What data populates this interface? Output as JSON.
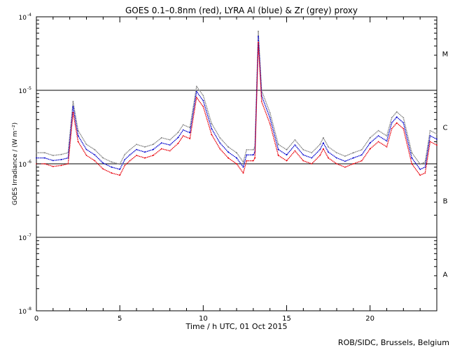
{
  "chart_data": {
    "type": "line",
    "title": "GOES 0.1–0.8nm (red), LYRA Al (blue) & Zr (grey) proxy",
    "xlabel": "Time / h UTC, 01 Oct 2015",
    "ylabel": "GOES Irradiance / (W m⁻²)",
    "xlim": [
      0,
      24
    ],
    "ylim_log10": [
      -8,
      -4
    ],
    "log_y": true,
    "x_ticks": [
      0,
      5,
      10,
      15,
      20
    ],
    "y_ticks": [
      {
        "exp": -8,
        "label": "10",
        "sup": "-8"
      },
      {
        "exp": -7,
        "label": "10",
        "sup": "-7"
      },
      {
        "exp": -6,
        "label": "10",
        "sup": "-6"
      },
      {
        "exp": -5,
        "label": "10",
        "sup": "-5"
      },
      {
        "exp": -4,
        "label": "10",
        "sup": "-4"
      }
    ],
    "reference_lines_log10": [
      -7,
      -6,
      -5
    ],
    "flare_classes": [
      {
        "label": "M",
        "log10": -4.5
      },
      {
        "label": "C",
        "log10": -5.5
      },
      {
        "label": "B",
        "log10": -6.5
      },
      {
        "label": "A",
        "log10": -7.5
      }
    ],
    "colors": {
      "goes": "#e8000b",
      "al": "#0000cc",
      "zr": "#808080"
    },
    "series": [
      {
        "name": "GOES 0.1–0.8nm",
        "color": "red",
        "log10_offset": 0.0,
        "x": [
          0,
          0.5,
          1,
          1.5,
          1.9,
          2.2,
          2.5,
          3,
          3.5,
          4,
          4.5,
          5,
          5.3,
          5.6,
          6,
          6.5,
          7,
          7.5,
          8,
          8.5,
          8.8,
          9.2,
          9.6,
          10,
          10.5,
          11,
          11.5,
          12,
          12.4,
          12.6,
          13,
          13.1,
          13.3,
          13.5,
          14,
          14.5,
          15,
          15.5,
          16,
          16.5,
          17,
          17.2,
          17.5,
          18,
          18.5,
          19,
          19.5,
          20,
          20.5,
          21,
          21.3,
          21.6,
          22,
          22.5,
          23,
          23.3,
          23.6,
          24
        ],
        "y": [
          1e-06,
          1e-06,
          9.2e-07,
          9.5e-07,
          1e-06,
          5e-06,
          2e-06,
          1.3e-06,
          1.1e-06,
          8.5e-07,
          7.5e-07,
          7e-07,
          9.5e-07,
          1.1e-06,
          1.3e-06,
          1.2e-06,
          1.3e-06,
          1.6e-06,
          1.5e-06,
          1.9e-06,
          2.4e-06,
          2.2e-06,
          8e-06,
          6e-06,
          2.5e-06,
          1.6e-06,
          1.2e-06,
          1e-06,
          7.5e-07,
          1.1e-06,
          1.1e-06,
          1.2e-06,
          4.5e-05,
          7e-06,
          3.5e-06,
          1.3e-06,
          1.1e-06,
          1.5e-06,
          1.1e-06,
          1e-06,
          1.3e-06,
          1.6e-06,
          1.2e-06,
          1e-06,
          9e-07,
          1e-06,
          1.1e-06,
          1.6e-06,
          2e-06,
          1.7e-06,
          3e-06,
          3.6e-06,
          3e-06,
          1e-06,
          7e-07,
          7.5e-07,
          2e-06,
          1.8e-06
        ]
      },
      {
        "name": "LYRA Al proxy",
        "color": "blue",
        "log10_offset": 0.08,
        "x": [
          0,
          0.5,
          1,
          1.5,
          1.9,
          2.2,
          2.5,
          3,
          3.5,
          4,
          4.5,
          5,
          5.3,
          5.6,
          6,
          6.5,
          7,
          7.5,
          8,
          8.5,
          8.8,
          9.2,
          9.6,
          10,
          10.5,
          11,
          11.5,
          12,
          12.4,
          12.6,
          13,
          13.1,
          13.3,
          13.5,
          14,
          14.5,
          15,
          15.5,
          16,
          16.5,
          17,
          17.2,
          17.5,
          18,
          18.5,
          19,
          19.5,
          20,
          20.5,
          21,
          21.3,
          21.6,
          22,
          22.5,
          23,
          23.3,
          23.6,
          24
        ],
        "y": [
          1e-06,
          1e-06,
          9.2e-07,
          9.5e-07,
          1e-06,
          5e-06,
          2e-06,
          1.3e-06,
          1.1e-06,
          8.5e-07,
          7.5e-07,
          7e-07,
          9.5e-07,
          1.1e-06,
          1.3e-06,
          1.2e-06,
          1.3e-06,
          1.6e-06,
          1.5e-06,
          1.9e-06,
          2.4e-06,
          2.2e-06,
          8e-06,
          6e-06,
          2.5e-06,
          1.6e-06,
          1.2e-06,
          1e-06,
          7.5e-07,
          1.1e-06,
          1.1e-06,
          1.2e-06,
          4.5e-05,
          7e-06,
          3.5e-06,
          1.3e-06,
          1.1e-06,
          1.5e-06,
          1.1e-06,
          1e-06,
          1.3e-06,
          1.6e-06,
          1.2e-06,
          1e-06,
          9e-07,
          1e-06,
          1.1e-06,
          1.6e-06,
          2e-06,
          1.7e-06,
          3e-06,
          3.6e-06,
          3e-06,
          1e-06,
          7e-07,
          7.5e-07,
          2e-06,
          1.8e-06
        ]
      },
      {
        "name": "LYRA Zr proxy",
        "color": "grey",
        "log10_offset": 0.15,
        "x": [
          0,
          0.5,
          1,
          1.5,
          1.9,
          2.2,
          2.5,
          3,
          3.5,
          4,
          4.5,
          5,
          5.3,
          5.6,
          6,
          6.5,
          7,
          7.5,
          8,
          8.5,
          8.8,
          9.2,
          9.6,
          10,
          10.5,
          11,
          11.5,
          12,
          12.4,
          12.6,
          13,
          13.1,
          13.3,
          13.5,
          14,
          14.5,
          15,
          15.5,
          16,
          16.5,
          17,
          17.2,
          17.5,
          18,
          18.5,
          19,
          19.5,
          20,
          20.5,
          21,
          21.3,
          21.6,
          22,
          22.5,
          23,
          23.3,
          23.6,
          24
        ],
        "y": [
          1e-06,
          1e-06,
          9.2e-07,
          9.5e-07,
          1e-06,
          5e-06,
          2e-06,
          1.3e-06,
          1.1e-06,
          8.5e-07,
          7.5e-07,
          7e-07,
          9.5e-07,
          1.1e-06,
          1.3e-06,
          1.2e-06,
          1.3e-06,
          1.6e-06,
          1.5e-06,
          1.9e-06,
          2.4e-06,
          2.2e-06,
          8e-06,
          6e-06,
          2.5e-06,
          1.6e-06,
          1.2e-06,
          1e-06,
          7.5e-07,
          1.1e-06,
          1.1e-06,
          1.2e-06,
          4.5e-05,
          7e-06,
          3.5e-06,
          1.3e-06,
          1.1e-06,
          1.5e-06,
          1.1e-06,
          1e-06,
          1.3e-06,
          1.6e-06,
          1.2e-06,
          1e-06,
          9e-07,
          1e-06,
          1.1e-06,
          1.6e-06,
          2e-06,
          1.7e-06,
          3e-06,
          3.6e-06,
          3e-06,
          1e-06,
          7e-07,
          7.5e-07,
          2e-06,
          1.8e-06
        ]
      }
    ],
    "credit": "ROB/SIDC, Brussels, Belgium"
  }
}
